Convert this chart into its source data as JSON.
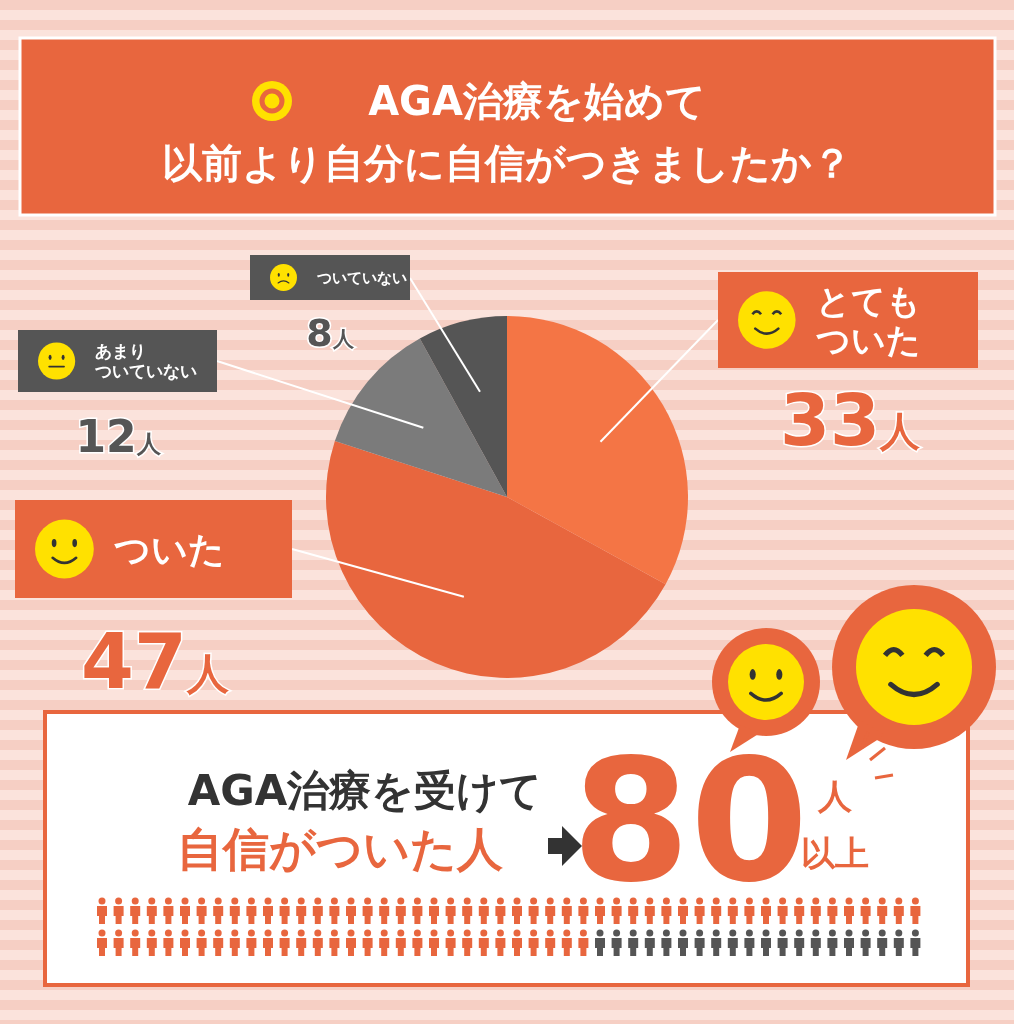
{
  "chart_data": {
    "type": "pie",
    "title": "AGA治療を始めて以前より自分に自信がつきましたか？",
    "categories": [
      "とてもついた",
      "ついた",
      "あまりついていない",
      "ついていない"
    ],
    "values": [
      33,
      47,
      12,
      8
    ],
    "colors": [
      "#f47545",
      "#e8663e",
      "#7b7b7b",
      "#555555"
    ],
    "value_labels": [
      "33人",
      "47人",
      "12人",
      "8人"
    ],
    "annotations": [
      "AGA治療を受けて",
      "自信がついた人",
      "80",
      "人",
      "以上"
    ]
  }
}
